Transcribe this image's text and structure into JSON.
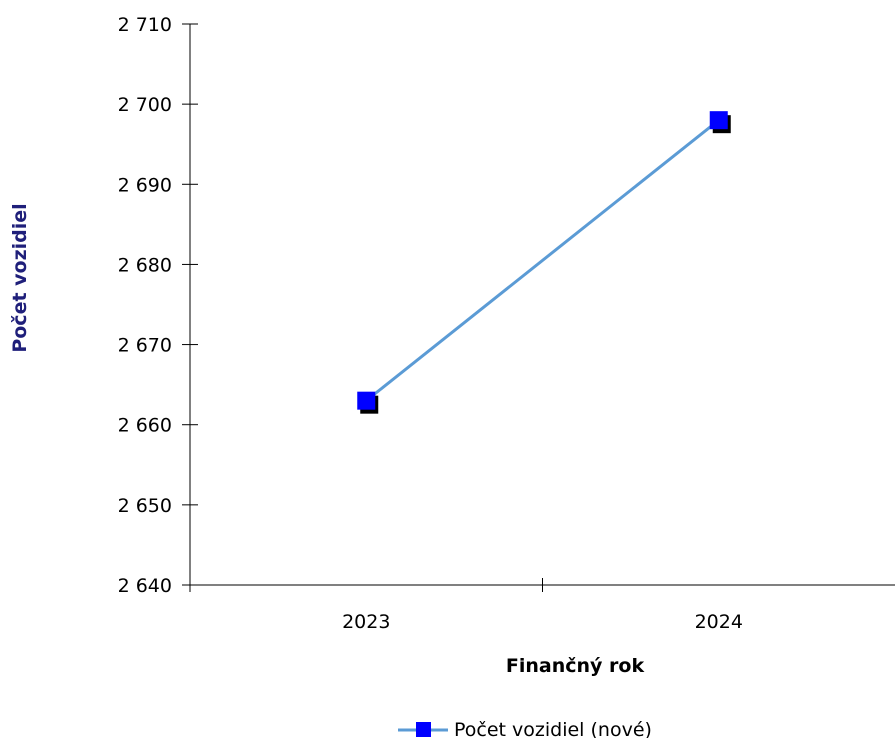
{
  "chart_data": {
    "type": "line",
    "title": "",
    "xlabel": "Finančný rok",
    "ylabel": "Počet vozidiel",
    "categories": [
      "2023",
      "2024"
    ],
    "series": [
      {
        "name": "Počet vozidiel (nové)",
        "values": [
          2663,
          2698
        ]
      }
    ],
    "ylim": [
      2640,
      2710
    ],
    "yticks": [
      2640,
      2650,
      2660,
      2670,
      2680,
      2690,
      2700,
      2710
    ],
    "ytick_labels": [
      "2 640",
      "2 650",
      "2 660",
      "2 670",
      "2 680",
      "2 690",
      "2 700",
      "2 710"
    ],
    "grid": false,
    "legend_position": "bottom",
    "colors": {
      "line": "#5b9bd5",
      "marker": "#0000ff",
      "marker_shadow": "#000000",
      "ylabel": "#1f1f7a",
      "axis": "#000000"
    }
  }
}
